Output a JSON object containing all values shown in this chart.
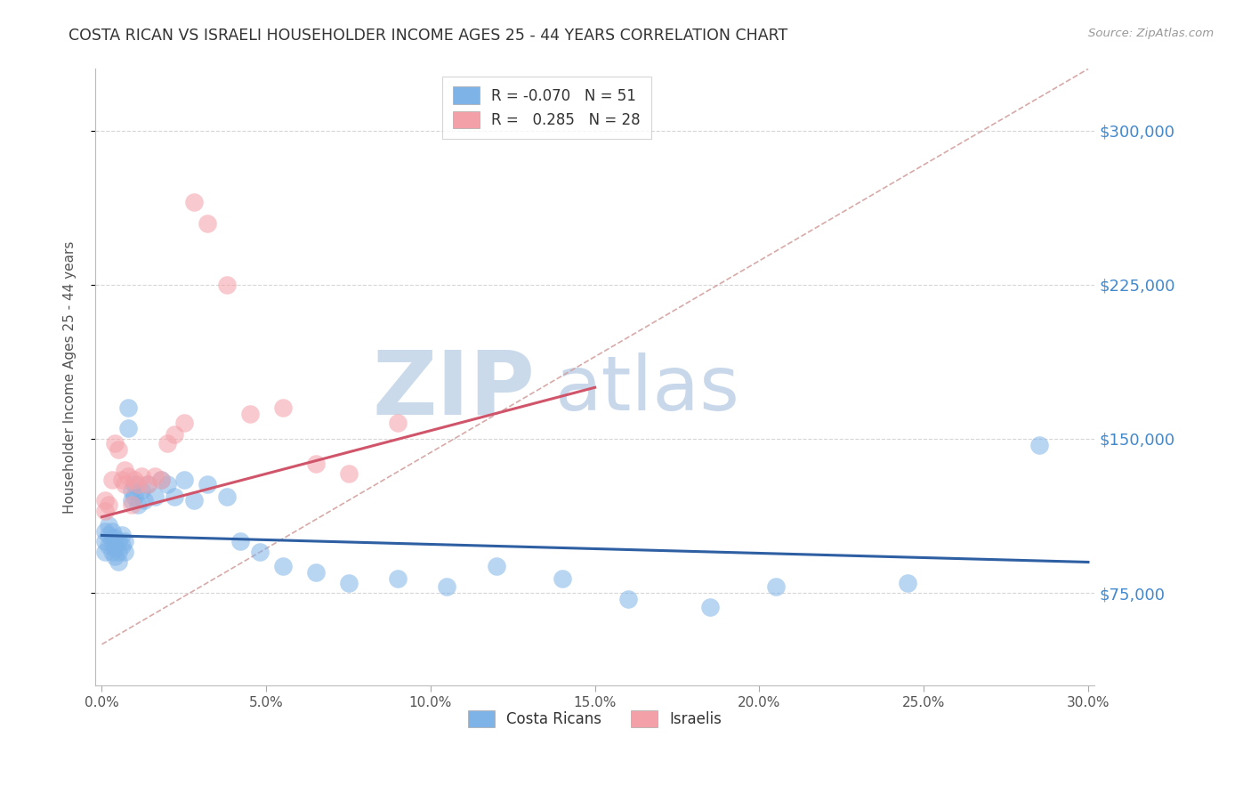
{
  "title": "COSTA RICAN VS ISRAELI HOUSEHOLDER INCOME AGES 25 - 44 YEARS CORRELATION CHART",
  "source": "Source: ZipAtlas.com",
  "ylabel": "Householder Income Ages 25 - 44 years",
  "xlim": [
    -0.002,
    0.302
  ],
  "ylim": [
    30000,
    330000
  ],
  "yticks": [
    75000,
    150000,
    225000,
    300000
  ],
  "ytick_labels": [
    "$75,000",
    "$150,000",
    "$225,000",
    "$300,000"
  ],
  "xticks": [
    0.0,
    0.05,
    0.1,
    0.15,
    0.2,
    0.25,
    0.3
  ],
  "xtick_labels": [
    "0.0%",
    "5.0%",
    "10.0%",
    "15.0%",
    "20.0%",
    "25.0%",
    "30.0%"
  ],
  "cr_R": -0.07,
  "cr_N": 51,
  "is_R": 0.285,
  "is_N": 28,
  "blue_scatter": "#7EB3E8",
  "pink_scatter": "#F4A0A8",
  "blue_line": "#2E5FA3",
  "pink_line": "#D0556A",
  "ref_line_color": "#D4A0A0",
  "right_label_color": "#4488CC",
  "watermark_zip_color": "#CADAEA",
  "watermark_atlas_color": "#C8D8EA",
  "costa_ricans_x": [
    0.001,
    0.001,
    0.001,
    0.002,
    0.002,
    0.002,
    0.003,
    0.003,
    0.003,
    0.004,
    0.004,
    0.004,
    0.005,
    0.005,
    0.005,
    0.006,
    0.006,
    0.007,
    0.007,
    0.008,
    0.008,
    0.009,
    0.009,
    0.01,
    0.01,
    0.011,
    0.012,
    0.013,
    0.014,
    0.016,
    0.018,
    0.02,
    0.022,
    0.025,
    0.028,
    0.032,
    0.038,
    0.042,
    0.048,
    0.055,
    0.065,
    0.075,
    0.09,
    0.105,
    0.12,
    0.14,
    0.16,
    0.185,
    0.205,
    0.245,
    0.285
  ],
  "costa_ricans_y": [
    105000,
    100000,
    95000,
    103000,
    98000,
    108000,
    100000,
    95000,
    105000,
    102000,
    97000,
    93000,
    100000,
    95000,
    90000,
    98000,
    103000,
    95000,
    100000,
    165000,
    155000,
    125000,
    120000,
    128000,
    122000,
    118000,
    125000,
    120000,
    128000,
    122000,
    130000,
    128000,
    122000,
    130000,
    120000,
    128000,
    122000,
    100000,
    95000,
    88000,
    85000,
    80000,
    82000,
    78000,
    88000,
    82000,
    72000,
    68000,
    78000,
    80000,
    147000
  ],
  "israelis_x": [
    0.001,
    0.001,
    0.002,
    0.003,
    0.004,
    0.005,
    0.006,
    0.007,
    0.007,
    0.008,
    0.009,
    0.01,
    0.011,
    0.012,
    0.014,
    0.016,
    0.018,
    0.02,
    0.022,
    0.025,
    0.028,
    0.032,
    0.038,
    0.045,
    0.055,
    0.065,
    0.075,
    0.09
  ],
  "israelis_y": [
    115000,
    120000,
    118000,
    130000,
    148000,
    145000,
    130000,
    128000,
    135000,
    132000,
    118000,
    130000,
    128000,
    132000,
    128000,
    132000,
    130000,
    148000,
    152000,
    158000,
    265000,
    255000,
    225000,
    162000,
    165000,
    138000,
    133000,
    158000
  ],
  "blue_line_x0": 0.0,
  "blue_line_y0": 103000,
  "blue_line_x1": 0.3,
  "blue_line_y1": 90000,
  "pink_line_x0": 0.0,
  "pink_line_y0": 112000,
  "pink_line_x1": 0.15,
  "pink_line_y1": 175000,
  "ref_line_x0": 0.0,
  "ref_line_y0": 50000,
  "ref_line_x1": 0.3,
  "ref_line_y1": 330000
}
